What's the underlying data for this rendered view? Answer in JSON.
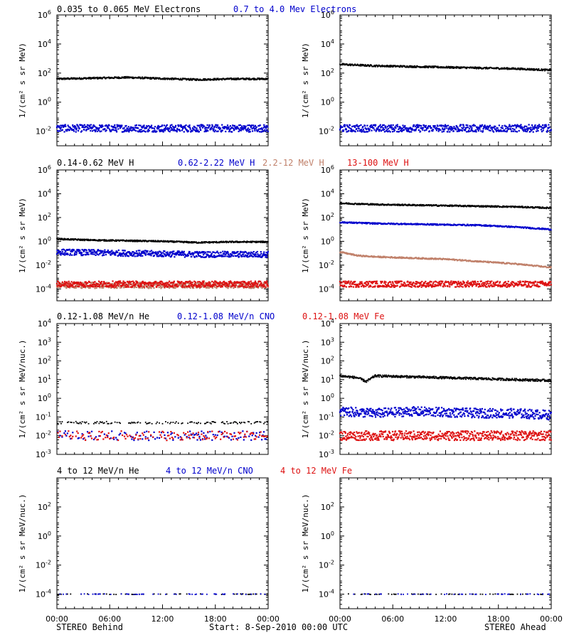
{
  "footer": {
    "left_label": "STEREO Behind",
    "start_label": "Start:  8-Sep-2010 00:00 UTC",
    "right_label": "STEREO Ahead"
  },
  "x_tick_labels": [
    "00:00",
    "06:00",
    "12:00",
    "18:00",
    "00:00"
  ],
  "rows": [
    {
      "ylabel": "1/(cm² s sr MeV)",
      "legend": [
        {
          "text": "0.035 to 0.065 MeV Electrons",
          "color": "#000000"
        },
        {
          "text": "0.7 to 4.0 Mev Electrons",
          "color": "#0000cc"
        }
      ]
    },
    {
      "ylabel": "1/(cm² s sr MeV)",
      "legend": [
        {
          "text": "0.14-0.62 MeV H",
          "color": "#000000"
        },
        {
          "text": "0.62-2.22 MeV H",
          "color": "#0000cc"
        },
        {
          "text": "2.2-12 MeV H",
          "color": "#c0806a"
        },
        {
          "text": "13-100 MeV H",
          "color": "#dd1111"
        }
      ]
    },
    {
      "ylabel": "1/(cm² s sr MeV/nuc.)",
      "legend": [
        {
          "text": "0.12-1.08 MeV/n He",
          "color": "#000000"
        },
        {
          "text": "0.12-1.08 MeV/n CNO",
          "color": "#0000cc"
        },
        {
          "text": "0.12-1.08 MeV Fe",
          "color": "#dd1111"
        }
      ]
    },
    {
      "ylabel": "1/(cm² s sr MeV/nuc.)",
      "legend": [
        {
          "text": "4 to 12 MeV/n He",
          "color": "#000000"
        },
        {
          "text": "4 to 12 MeV/n CNO",
          "color": "#0000cc"
        },
        {
          "text": "4 to 12 MeV Fe",
          "color": "#dd1111"
        }
      ]
    }
  ],
  "chart_data": [
    {
      "type": "scatter",
      "panel": "row1-left",
      "yscale": "log",
      "ylim_exp": [
        -3,
        6
      ],
      "y_tick_exponents": [
        -2,
        0,
        2,
        4,
        6
      ],
      "x": "hours 0-24",
      "series": [
        {
          "name": "0.035 to 0.065 MeV Electrons",
          "color": "#000000",
          "x": [
            0,
            4,
            8,
            12,
            16,
            20,
            24
          ],
          "y_exp": [
            1.6,
            1.65,
            1.7,
            1.62,
            1.55,
            1.6,
            1.6
          ]
        },
        {
          "name": "0.7 to 4.0 Mev Electrons",
          "color": "#0000cc",
          "x": [
            0,
            4,
            8,
            12,
            16,
            20,
            24
          ],
          "y_exp": [
            -1.8,
            -1.8,
            -1.8,
            -1.8,
            -1.8,
            -1.8,
            -1.8
          ]
        }
      ]
    },
    {
      "type": "scatter",
      "panel": "row1-right",
      "yscale": "log",
      "ylim_exp": [
        -3,
        6
      ],
      "y_tick_exponents": [
        -2,
        0,
        2,
        4,
        6
      ],
      "x": "hours 0-24",
      "series": [
        {
          "name": "0.035 to 0.065 MeV Electrons",
          "color": "#000000",
          "x": [
            0,
            4,
            8,
            12,
            16,
            20,
            24
          ],
          "y_exp": [
            2.6,
            2.5,
            2.45,
            2.4,
            2.35,
            2.3,
            2.2
          ]
        },
        {
          "name": "0.7 to 4.0 Mev Electrons",
          "color": "#0000cc",
          "x": [
            0,
            4,
            8,
            12,
            16,
            20,
            24
          ],
          "y_exp": [
            -1.8,
            -1.8,
            -1.8,
            -1.8,
            -1.8,
            -1.8,
            -1.8
          ]
        }
      ]
    },
    {
      "type": "scatter",
      "panel": "row2-left",
      "yscale": "log",
      "ylim_exp": [
        -5,
        6
      ],
      "y_tick_exponents": [
        -4,
        -2,
        0,
        2,
        4,
        6
      ],
      "x": "hours 0-24",
      "series": [
        {
          "name": "0.14-0.62 MeV H",
          "color": "#000000",
          "x": [
            0,
            4,
            8,
            12,
            16,
            20,
            24
          ],
          "y_exp": [
            0.2,
            0.1,
            0.05,
            0.0,
            -0.1,
            -0.05,
            -0.05
          ]
        },
        {
          "name": "0.62-2.22 MeV H",
          "color": "#0000cc",
          "x": [
            0,
            4,
            8,
            12,
            16,
            20,
            24
          ],
          "y_exp": [
            -0.9,
            -0.95,
            -1.0,
            -1.05,
            -1.1,
            -1.1,
            -1.1
          ]
        },
        {
          "name": "2.2-12 MeV H",
          "color": "#c0806a",
          "x": [
            0,
            4,
            8,
            12,
            16,
            20,
            24
          ],
          "y_exp": [
            -3.7,
            -3.7,
            -3.7,
            -3.7,
            -3.7,
            -3.7,
            -3.7
          ]
        },
        {
          "name": "13-100 MeV H",
          "color": "#dd1111",
          "x": [
            0,
            4,
            8,
            12,
            16,
            20,
            24
          ],
          "y_exp": [
            -3.6,
            -3.6,
            -3.6,
            -3.6,
            -3.6,
            -3.6,
            -3.6
          ]
        }
      ]
    },
    {
      "type": "scatter",
      "panel": "row2-right",
      "yscale": "log",
      "ylim_exp": [
        -5,
        6
      ],
      "y_tick_exponents": [
        -4,
        -2,
        0,
        2,
        4,
        6
      ],
      "x": "hours 0-24",
      "series": [
        {
          "name": "0.14-0.62 MeV H",
          "color": "#000000",
          "x": [
            0,
            4,
            8,
            12,
            16,
            20,
            24
          ],
          "y_exp": [
            3.2,
            3.1,
            3.05,
            3.0,
            2.95,
            2.9,
            2.8
          ]
        },
        {
          "name": "0.62-2.22 MeV H",
          "color": "#0000cc",
          "x": [
            0,
            4,
            8,
            12,
            16,
            20,
            24
          ],
          "y_exp": [
            1.6,
            1.5,
            1.45,
            1.4,
            1.35,
            1.2,
            1.0
          ]
        },
        {
          "name": "2.2-12 MeV H",
          "color": "#c0806a",
          "x": [
            0,
            2,
            4,
            8,
            12,
            16,
            20,
            24
          ],
          "y_exp": [
            -0.9,
            -1.2,
            -1.3,
            -1.4,
            -1.5,
            -1.7,
            -1.9,
            -2.2
          ]
        },
        {
          "name": "13-100 MeV H",
          "color": "#dd1111",
          "x": [
            0,
            4,
            8,
            12,
            16,
            20,
            24
          ],
          "y_exp": [
            -3.6,
            -3.6,
            -3.6,
            -3.6,
            -3.6,
            -3.6,
            -3.6
          ]
        }
      ]
    },
    {
      "type": "scatter",
      "panel": "row3-left",
      "yscale": "log",
      "ylim_exp": [
        -3,
        4
      ],
      "y_tick_exponents": [
        -3,
        -2,
        -1,
        0,
        1,
        2,
        3,
        4
      ],
      "x": "hours 0-24",
      "series": [
        {
          "name": "0.12-1.08 MeV/n He",
          "color": "#000000",
          "x": [
            0,
            4,
            8,
            12,
            16,
            20,
            24
          ],
          "y_exp": [
            -1.3,
            -1.3,
            -1.3,
            -1.3,
            -1.3,
            -1.3,
            -1.3
          ]
        },
        {
          "name": "0.12-1.08 MeV/n CNO",
          "color": "#0000cc",
          "x": [
            0,
            4,
            8,
            12,
            16,
            20,
            24
          ],
          "y_exp": [
            -2.0,
            -2.0,
            -2.0,
            -2.0,
            -2.0,
            -2.0,
            -2.0
          ]
        },
        {
          "name": "0.12-1.08 MeV Fe",
          "color": "#dd1111",
          "x": [
            0,
            4,
            8,
            12,
            16,
            20,
            24
          ],
          "y_exp": [
            -2.0,
            -2.0,
            -2.0,
            -2.0,
            -2.0,
            -2.0,
            -2.0
          ]
        }
      ]
    },
    {
      "type": "scatter",
      "panel": "row3-right",
      "yscale": "log",
      "ylim_exp": [
        -3,
        4
      ],
      "y_tick_exponents": [
        -3,
        -2,
        -1,
        0,
        1,
        2,
        3,
        4
      ],
      "x": "hours 0-24",
      "series": [
        {
          "name": "0.12-1.08 MeV/n He",
          "color": "#000000",
          "x": [
            0,
            2,
            3,
            4,
            8,
            12,
            16,
            20,
            24
          ],
          "y_exp": [
            1.2,
            1.1,
            0.9,
            1.2,
            1.15,
            1.1,
            1.05,
            1.0,
            0.95
          ]
        },
        {
          "name": "0.12-1.08 MeV/n CNO",
          "color": "#0000cc",
          "x": [
            0,
            4,
            8,
            12,
            16,
            20,
            24
          ],
          "y_exp": [
            -0.7,
            -0.8,
            -0.7,
            -0.75,
            -0.8,
            -0.8,
            -0.9
          ]
        },
        {
          "name": "0.12-1.08 MeV Fe",
          "color": "#dd1111",
          "x": [
            0,
            4,
            8,
            12,
            16,
            20,
            24
          ],
          "y_exp": [
            -2.0,
            -2.0,
            -2.0,
            -2.0,
            -2.0,
            -2.0,
            -2.0
          ]
        }
      ]
    },
    {
      "type": "scatter",
      "panel": "row4-left",
      "yscale": "log",
      "ylim_exp": [
        -5,
        4
      ],
      "y_tick_exponents": [
        -4,
        -2,
        0,
        2
      ],
      "x": "hours 0-24",
      "series": [
        {
          "name": "4 to 12 MeV/n He",
          "color": "#000000",
          "x": [
            0,
            4,
            8,
            12,
            16,
            20,
            24
          ],
          "y_exp": [
            -4,
            -4,
            -4,
            -4,
            -4,
            -4,
            -4
          ]
        },
        {
          "name": "4 to 12 MeV/n CNO",
          "color": "#0000cc",
          "x": [
            0,
            4,
            8,
            12,
            16,
            20,
            24
          ],
          "y_exp": [
            -4,
            -4,
            -4,
            -4,
            -4,
            -4,
            -4
          ]
        }
      ]
    },
    {
      "type": "scatter",
      "panel": "row4-right",
      "yscale": "log",
      "ylim_exp": [
        -5,
        4
      ],
      "y_tick_exponents": [
        -4,
        -2,
        0,
        2
      ],
      "x": "hours 0-24",
      "series": [
        {
          "name": "4 to 12 MeV/n He",
          "color": "#000000",
          "x": [
            0,
            4,
            8,
            12,
            16,
            20,
            24
          ],
          "y_exp": [
            -4,
            -4,
            -4,
            -4,
            -4,
            -4,
            -4
          ]
        },
        {
          "name": "4 to 12 MeV/n CNO",
          "color": "#0000cc",
          "x": [
            0,
            4,
            8,
            12,
            16,
            20,
            24
          ],
          "y_exp": [
            -4,
            -4,
            -4,
            -4,
            -4,
            -4,
            -4
          ]
        }
      ]
    }
  ]
}
